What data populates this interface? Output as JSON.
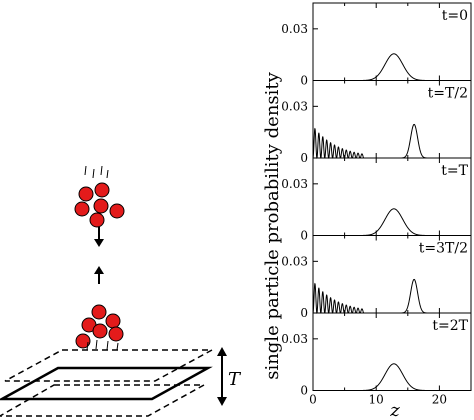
{
  "illustration": {
    "height_label": "T"
  },
  "chart_data": {
    "type": "line",
    "ylabel": "single particle probability density",
    "xlabel": "z",
    "xlim": [
      0,
      25
    ],
    "ylim": [
      0,
      0.045
    ],
    "x_ticks": [
      0,
      10,
      20
    ],
    "y_ticks": [
      0,
      0.03
    ],
    "panels": [
      {
        "label": "t=0",
        "components": [
          {
            "kind": "gaussian",
            "center": 12.8,
            "sigma": 1.4,
            "peak": 0.0155
          }
        ]
      },
      {
        "label": "t=T/2",
        "components": [
          {
            "kind": "oscillating_decay",
            "start": 0.0,
            "end": 8.0,
            "peak": 0.0185,
            "decay": 3.8,
            "period": 0.62
          },
          {
            "kind": "gaussian",
            "center": 16.0,
            "sigma": 0.55,
            "peak": 0.0195
          }
        ]
      },
      {
        "label": "t=T",
        "components": [
          {
            "kind": "gaussian",
            "center": 12.8,
            "sigma": 1.4,
            "peak": 0.0155
          }
        ]
      },
      {
        "label": "t=3T/2",
        "components": [
          {
            "kind": "oscillating_decay",
            "start": 0.0,
            "end": 8.0,
            "peak": 0.0185,
            "decay": 3.8,
            "period": 0.62
          },
          {
            "kind": "gaussian",
            "center": 16.0,
            "sigma": 0.55,
            "peak": 0.0195
          }
        ]
      },
      {
        "label": "t=2T",
        "components": [
          {
            "kind": "gaussian",
            "center": 12.8,
            "sigma": 1.4,
            "peak": 0.0155
          }
        ]
      }
    ]
  }
}
